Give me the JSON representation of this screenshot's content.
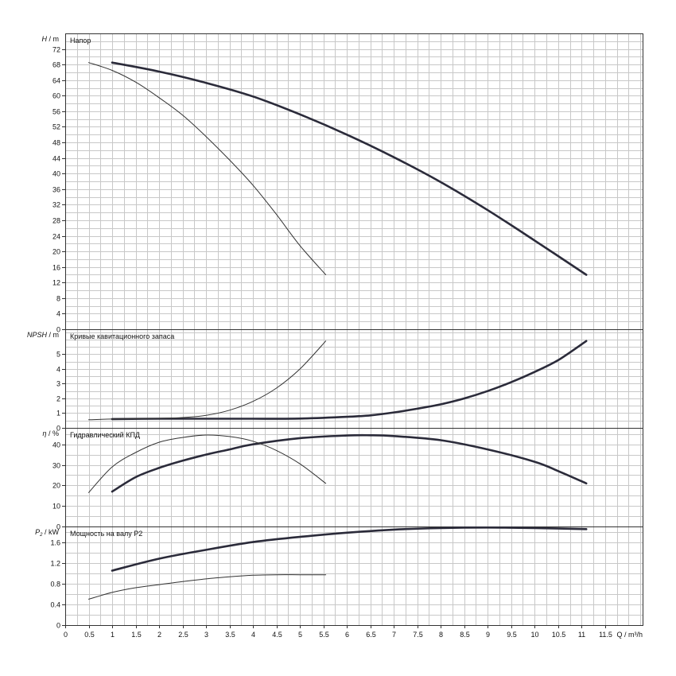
{
  "chart_data": [
    {
      "type": "line",
      "panel": "head",
      "title": "Напор",
      "ylabel_sym": "H",
      "ylabel_unit": " / m",
      "ylim": [
        0,
        76
      ],
      "yticks": [
        0,
        4,
        8,
        12,
        16,
        20,
        24,
        28,
        32,
        36,
        40,
        44,
        48,
        52,
        56,
        60,
        64,
        68,
        72
      ],
      "series": [
        {
          "style": "thick",
          "x": [
            1,
            2,
            3,
            4,
            5,
            6,
            7,
            8,
            9,
            10,
            11.1
          ],
          "y": [
            68.5,
            66.2,
            63.3,
            59.8,
            55.2,
            50,
            44.2,
            37.8,
            30.6,
            22.8,
            14
          ]
        },
        {
          "style": "thin",
          "x": [
            0.5,
            1,
            1.5,
            2,
            2.5,
            3,
            3.5,
            4,
            4.5,
            5,
            5.55
          ],
          "y": [
            68.5,
            66.5,
            63.5,
            59.5,
            55,
            49.5,
            43.5,
            37,
            29.5,
            21.5,
            14
          ]
        }
      ]
    },
    {
      "type": "line",
      "panel": "npsh",
      "title": "Кривые кавитационного запаса",
      "ylabel_sym": "NPSH",
      "ylabel_unit": " / m",
      "ylim": [
        0,
        6.7
      ],
      "yticks": [
        0,
        1,
        2,
        3,
        4,
        5
      ],
      "series": [
        {
          "style": "thick",
          "x": [
            1,
            2,
            3,
            4,
            5,
            6,
            6.5,
            7,
            7.5,
            8,
            8.5,
            9,
            9.5,
            10,
            10.5,
            11.1
          ],
          "y": [
            0.6,
            0.62,
            0.62,
            0.62,
            0.63,
            0.75,
            0.85,
            1.05,
            1.3,
            1.6,
            2.0,
            2.5,
            3.1,
            3.8,
            4.6,
            5.9
          ]
        },
        {
          "style": "thin",
          "x": [
            0.5,
            1,
            1.5,
            2,
            2.5,
            3,
            3.5,
            4,
            4.5,
            5,
            5.55
          ],
          "y": [
            0.55,
            0.6,
            0.62,
            0.65,
            0.7,
            0.85,
            1.2,
            1.8,
            2.7,
            4.0,
            5.9
          ]
        }
      ]
    },
    {
      "type": "line",
      "panel": "efficiency",
      "title": "Гидравлический КПД",
      "ylabel_sym": "η",
      "ylabel_unit": " / %",
      "ylim": [
        0,
        48
      ],
      "yticks": [
        0,
        10,
        20,
        30,
        40
      ],
      "series": [
        {
          "style": "thick",
          "x": [
            1,
            1.5,
            2,
            2.5,
            3,
            3.5,
            4,
            5,
            6,
            6.5,
            7,
            8,
            9,
            10,
            10.5,
            11.1
          ],
          "y": [
            17,
            24,
            28.5,
            32,
            35,
            37.5,
            40,
            43,
            44.3,
            44.4,
            44,
            42,
            37.5,
            31.5,
            27,
            21
          ]
        },
        {
          "style": "thin",
          "x": [
            0.5,
            1,
            1.5,
            2,
            2.5,
            3,
            3.5,
            4,
            4.5,
            5,
            5.55
          ],
          "y": [
            16.5,
            29,
            36,
            41,
            43.3,
            44.5,
            43.8,
            41.5,
            37,
            30.5,
            21
          ]
        }
      ]
    },
    {
      "type": "line",
      "panel": "power",
      "title": "Мощность на валу P2",
      "ylabel_sym": "P",
      "ylabel_sub": "2",
      "ylabel_unit": " / kW",
      "ylim": [
        0,
        1.9
      ],
      "yticks": [
        0,
        0.4,
        0.8,
        1.2,
        1.6
      ],
      "ytick_labels": [
        "0",
        "0.4",
        "0.8",
        "1.2",
        "1.6"
      ],
      "series": [
        {
          "style": "thick",
          "x": [
            1,
            2,
            3,
            4,
            5,
            6,
            7,
            8,
            9,
            10,
            11.1
          ],
          "y": [
            1.05,
            1.28,
            1.45,
            1.6,
            1.7,
            1.78,
            1.84,
            1.87,
            1.88,
            1.87,
            1.85
          ]
        },
        {
          "style": "thin",
          "x": [
            0.5,
            1,
            1.5,
            2,
            2.5,
            3,
            3.5,
            4,
            4.5,
            5,
            5.55
          ],
          "y": [
            0.5,
            0.63,
            0.72,
            0.78,
            0.84,
            0.89,
            0.93,
            0.96,
            0.97,
            0.97,
            0.97
          ]
        }
      ]
    }
  ],
  "x_axis": {
    "xlim": [
      0,
      12.3
    ],
    "ticks": [
      0,
      0.5,
      1,
      1.5,
      2,
      2.5,
      3,
      3.5,
      4,
      4.5,
      5,
      5.5,
      6,
      6.5,
      7,
      7.5,
      8,
      8.5,
      9,
      9.5,
      10,
      10.5,
      11,
      11.5
    ],
    "tick_labels": [
      "0",
      "0.5",
      "1",
      "1.5",
      "2",
      "2.5",
      "3",
      "3.5",
      "4",
      "4.5",
      "5",
      "5.5",
      "6",
      "6.5",
      "7",
      "7.5",
      "8",
      "8.5",
      "9",
      "9.5",
      "10",
      "10.5",
      "11",
      "11.5"
    ],
    "xlabel": "Q / m³/h",
    "grid": true
  }
}
